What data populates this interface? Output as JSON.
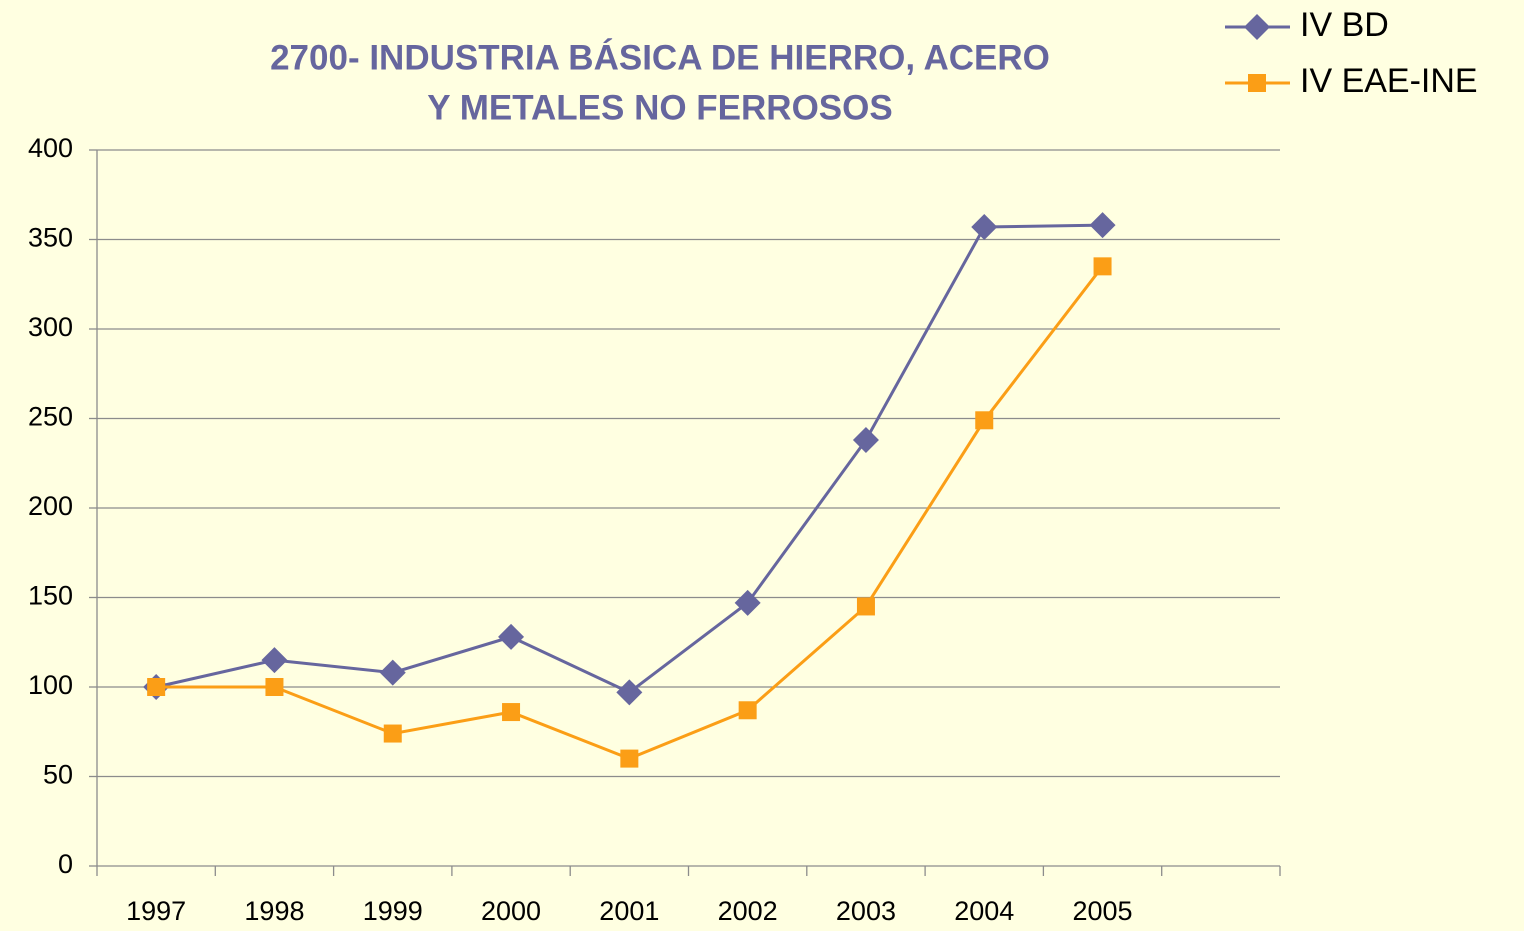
{
  "chart_data": {
    "type": "line",
    "title": [
      "2700- INDUSTRIA BÁSICA DE HIERRO, ACERO",
      "Y METALES NO FERROSOS"
    ],
    "categories": [
      "1997",
      "1998",
      "1999",
      "2000",
      "2001",
      "2002",
      "2003",
      "2004",
      "2005",
      null
    ],
    "series": [
      {
        "name": "IV BD",
        "color": "#66669e",
        "marker": "diamond",
        "values": [
          100,
          115,
          108,
          128,
          97,
          147,
          238,
          357,
          358,
          null
        ]
      },
      {
        "name": "IV EAE-INE",
        "color": "#fb9e16",
        "marker": "square",
        "values": [
          100,
          100,
          74,
          86,
          60,
          87,
          145,
          249,
          335,
          null
        ]
      }
    ],
    "ylim": [
      0,
      400
    ],
    "yticks": [
      0,
      50,
      100,
      150,
      200,
      250,
      300,
      350,
      400
    ],
    "grid": true,
    "legend": "top-right"
  }
}
